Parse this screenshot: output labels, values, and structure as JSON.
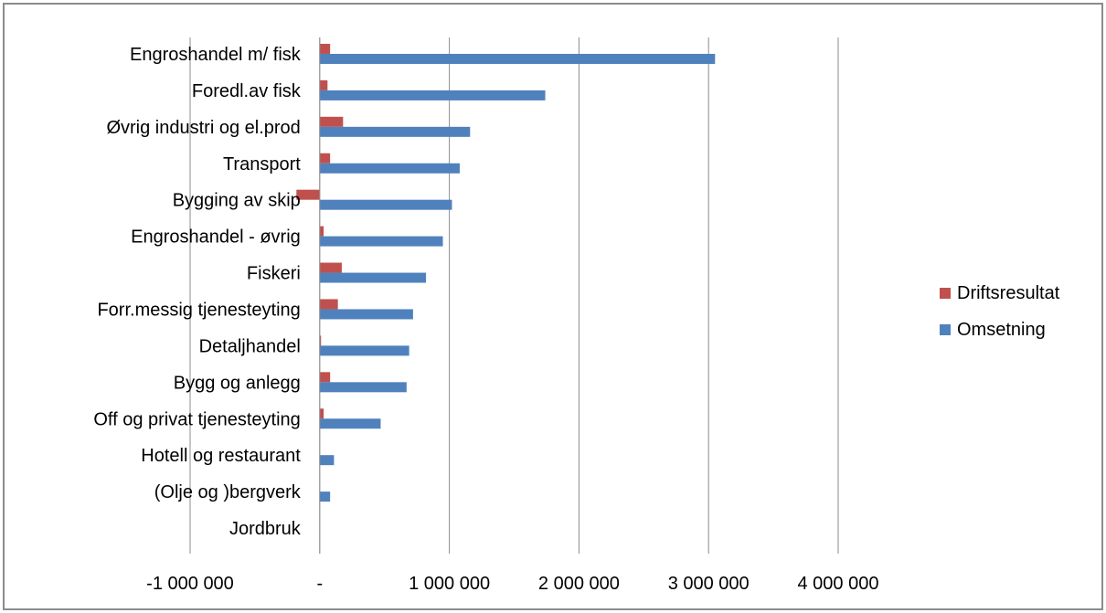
{
  "chart_data": {
    "type": "bar",
    "orientation": "horizontal",
    "categories": [
      "Engroshandel m/ fisk",
      "Foredl.av fisk",
      "Øvrig industri og el.prod",
      "Transport",
      "Bygging av skip",
      "Engroshandel - øvrig",
      "Fiskeri",
      "Forr.messig tjenesteyting",
      "Detaljhandel",
      "Bygg og anlegg",
      "Off og privat tjenesteyting",
      "Hotell og restaurant",
      "(Olje og )bergverk",
      "Jordbruk"
    ],
    "series": [
      {
        "name": "Driftsresultat",
        "color": "#c0504d",
        "values": [
          80000,
          60000,
          180000,
          80000,
          -180000,
          30000,
          170000,
          140000,
          10000,
          80000,
          30000,
          0,
          0,
          0
        ]
      },
      {
        "name": "Omsetning",
        "color": "#4f81bd",
        "values": [
          3050000,
          1740000,
          1160000,
          1080000,
          1020000,
          950000,
          820000,
          720000,
          690000,
          670000,
          470000,
          110000,
          80000,
          0
        ]
      }
    ],
    "xlim": [
      -1000000,
      4000000
    ],
    "xticks": [
      -1000000,
      0,
      1000000,
      2000000,
      3000000,
      4000000
    ],
    "xtick_labels": [
      "-1 000 000",
      "-",
      "1 000 000",
      "2 000 000",
      "3 000 000",
      "4 000 000"
    ],
    "grid": "vertical",
    "legend_position": "right",
    "title": "",
    "xlabel": "",
    "ylabel": ""
  }
}
